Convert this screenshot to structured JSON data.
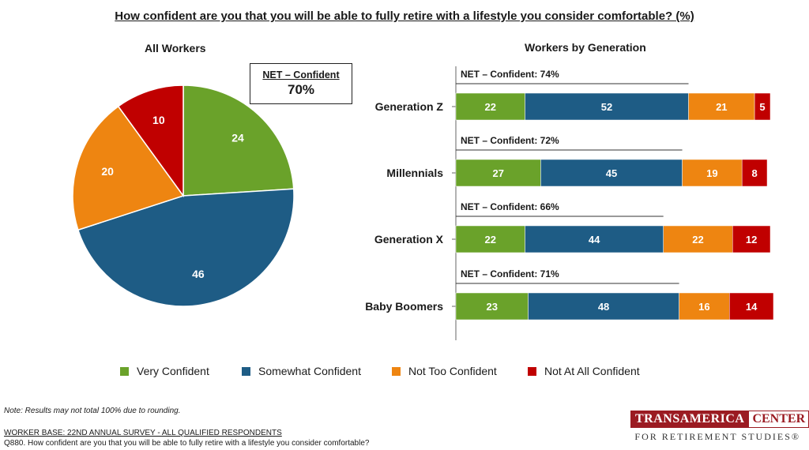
{
  "title": "How confident are you that you will be able to fully retire with a lifestyle you consider comfortable? (%)",
  "colors": {
    "very": "#6aa22a",
    "somewhat": "#1e5c85",
    "nottoo": "#ee8511",
    "notatall": "#c00000"
  },
  "chart_data": [
    {
      "type": "pie",
      "title": "All Workers",
      "net_label": "NET – Confident",
      "net_value": "70%",
      "slices": [
        {
          "name": "Very Confident",
          "value": 24
        },
        {
          "name": "Somewhat Confident",
          "value": 46
        },
        {
          "name": "Not Too Confident",
          "value": 20
        },
        {
          "name": "Not At All Confident",
          "value": 10
        }
      ]
    },
    {
      "type": "bar",
      "orientation": "horizontal",
      "stacked": true,
      "title": "Workers by Generation",
      "categories": [
        "Generation Z",
        "Millennials",
        "Generation X",
        "Baby Boomers"
      ],
      "net_labels": [
        "NET – Confident: 74%",
        "NET – Confident: 72%",
        "NET – Confident: 66%",
        "NET – Confident: 71%"
      ],
      "net_values": [
        74,
        72,
        66,
        71
      ],
      "series": [
        {
          "name": "Very Confident",
          "values": [
            22,
            27,
            22,
            23
          ]
        },
        {
          "name": "Somewhat Confident",
          "values": [
            52,
            45,
            44,
            48
          ]
        },
        {
          "name": "Not Too Confident",
          "values": [
            21,
            19,
            22,
            16
          ]
        },
        {
          "name": "Not At All Confident",
          "values": [
            5,
            8,
            12,
            14
          ]
        }
      ]
    }
  ],
  "legend": [
    "Very Confident",
    "Somewhat Confident",
    "Not Too Confident",
    "Not At All Confident"
  ],
  "footer": {
    "note": "Note: Results may not total 100% due to rounding.",
    "base": "WORKER BASE:  22ND ANNUAL SURVEY - ALL QUALIFIED RESPONDENTS",
    "question": "Q880. How confident are you that you will be able to fully retire with a lifestyle you consider comfortable?"
  },
  "logo": {
    "part1": "TRANSAMERICA",
    "part2": "CENTER",
    "part3": "FOR RETIREMENT STUDIES®"
  }
}
